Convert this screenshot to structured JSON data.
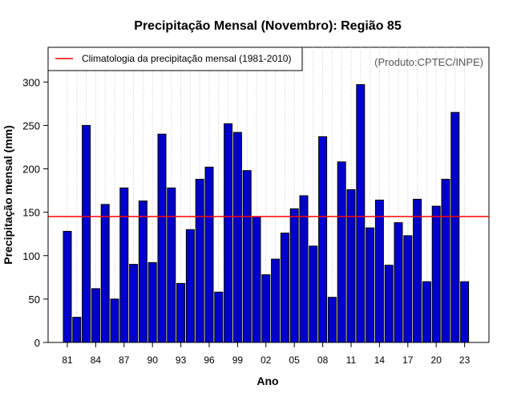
{
  "chart_data": {
    "type": "bar",
    "title": "Precipitação Mensal (Novembro): Região 85",
    "xlabel": "Ano",
    "ylabel": "Precipitação mensal (mm)",
    "credit": "(Produto:CPTEC/INPE)",
    "ylim": [
      0,
      340
    ],
    "yticks": [
      0,
      50,
      100,
      150,
      200,
      250,
      300
    ],
    "years": [
      1981,
      1982,
      1983,
      1984,
      1985,
      1986,
      1987,
      1988,
      1989,
      1990,
      1991,
      1992,
      1993,
      1994,
      1995,
      1996,
      1997,
      1998,
      1999,
      2000,
      2001,
      2002,
      2003,
      2004,
      2005,
      2006,
      2007,
      2008,
      2009,
      2010,
      2011,
      2012,
      2013,
      2014,
      2015,
      2016,
      2017,
      2018,
      2019,
      2020,
      2021,
      2022,
      2023
    ],
    "values": [
      128,
      29,
      250,
      62,
      159,
      50,
      178,
      90,
      163,
      92,
      240,
      178,
      68,
      130,
      188,
      202,
      58,
      252,
      242,
      198,
      145,
      78,
      96,
      126,
      154,
      169,
      111,
      237,
      52,
      208,
      176,
      297,
      132,
      164,
      89,
      138,
      123,
      165,
      70,
      157,
      188,
      265,
      70
    ],
    "xtick_labels": [
      "81",
      "84",
      "87",
      "90",
      "93",
      "96",
      "99",
      "02",
      "05",
      "08",
      "11",
      "14",
      "17",
      "20",
      "23"
    ],
    "climatology": {
      "label": "Climatologia da precipitação mensal (1981-2010)",
      "value": 145,
      "color": "#ff0000"
    },
    "legend_position": "top-left",
    "bar_color": "#0000cd",
    "grid": "vertical-dotted"
  }
}
